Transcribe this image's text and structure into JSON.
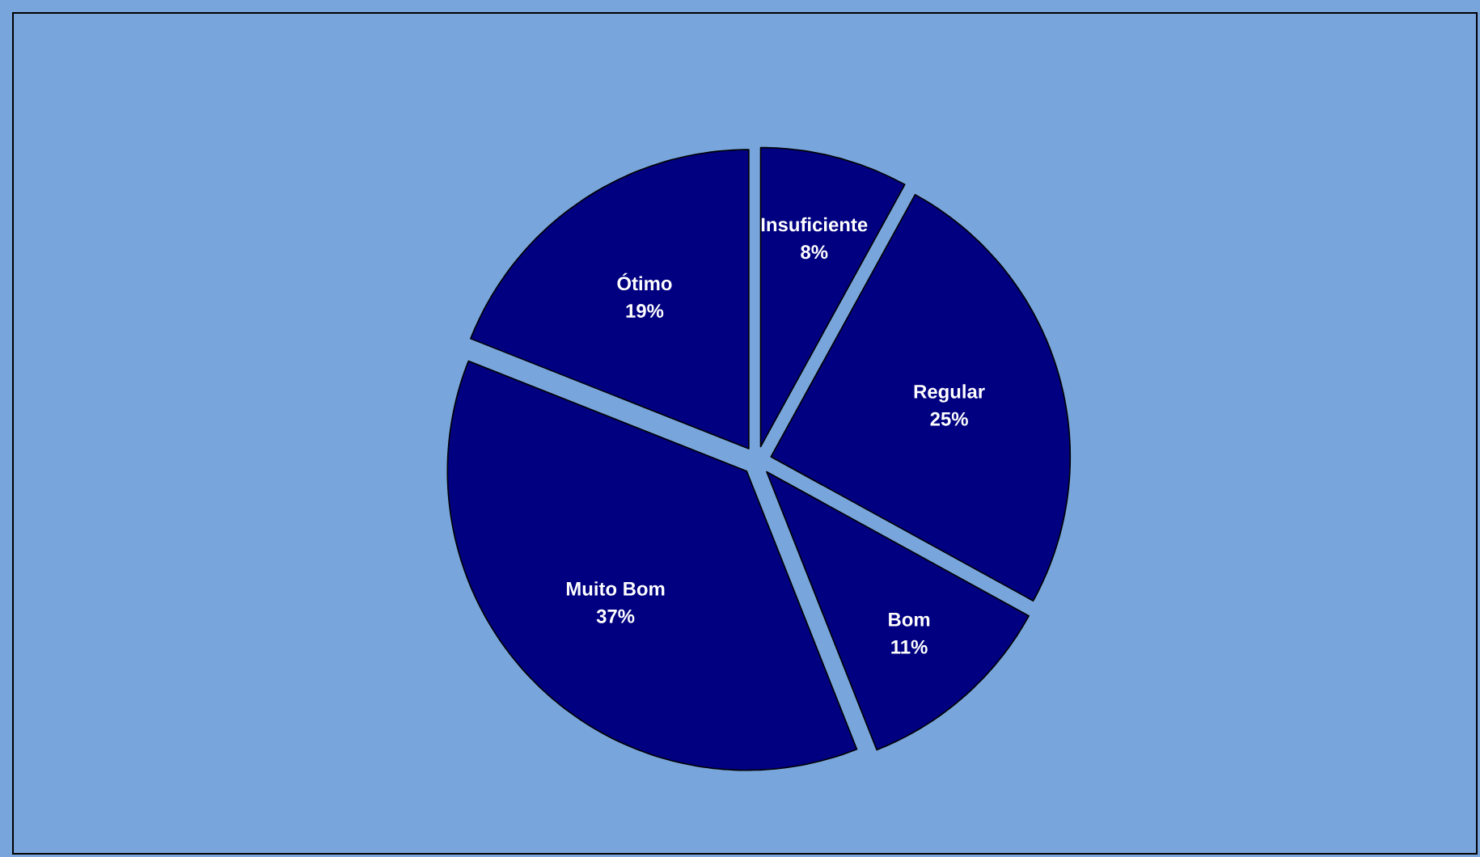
{
  "chart_data": {
    "type": "pie",
    "categories": [
      "Insuficiente",
      "Regular",
      "Bom",
      "Muito Bom",
      "Ótimo"
    ],
    "values": [
      8,
      25,
      11,
      37,
      19
    ],
    "value_labels": [
      "8%",
      "25%",
      "11%",
      "37%",
      "19%"
    ],
    "colors": [
      "#000080",
      "#000080",
      "#000080",
      "#000080",
      "#000080"
    ]
  }
}
